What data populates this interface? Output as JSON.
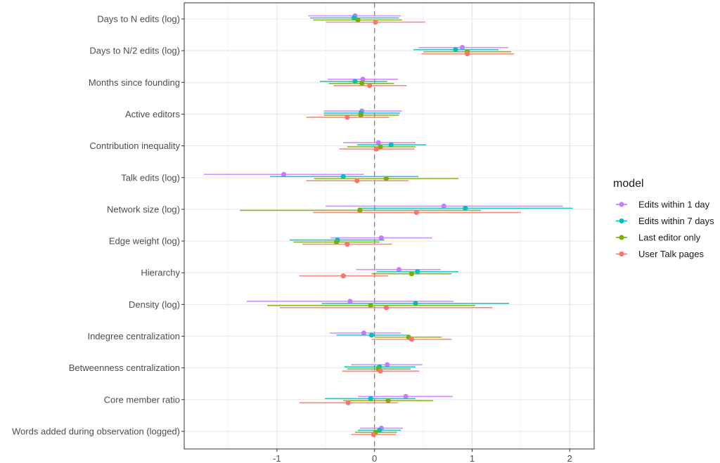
{
  "chart_data": {
    "type": "scatter",
    "subtype": "coefficient-plot-with-error-bars",
    "title": "",
    "xlabel": "",
    "ylabel": "",
    "xlim": [
      -1.95,
      2.25
    ],
    "x_ticks": [
      -1,
      0,
      1,
      2
    ],
    "x_tick_labels": [
      "-1",
      "0",
      "1",
      "2"
    ],
    "reference_line": 0,
    "grid": true,
    "legend": {
      "title": "model",
      "position": "right"
    },
    "categories": [
      "Days to N edits (log)",
      "Days to N/2 edits (log)",
      "Months since founding",
      "Active editors",
      "Contribution inequality",
      "Talk edits (log)",
      "Network size (log)",
      "Edge weight (log)",
      "Hierarchy",
      "Density (log)",
      "Indegree centralization",
      "Betweenness centralization",
      "Core member ratio",
      "Words added during observation (logged)"
    ],
    "series": [
      {
        "name": "Edits within 1 day",
        "color": "#c77cff",
        "estimate": [
          -0.2,
          0.9,
          -0.12,
          -0.13,
          0.04,
          -0.93,
          0.71,
          0.07,
          0.25,
          -0.25,
          -0.11,
          0.13,
          0.32,
          0.07
        ],
        "lower": [
          -0.68,
          0.45,
          -0.48,
          -0.52,
          -0.32,
          -1.75,
          -0.5,
          -0.45,
          -0.19,
          -1.31,
          -0.46,
          -0.24,
          -0.17,
          -0.15
        ],
        "upper": [
          0.27,
          1.37,
          0.24,
          0.28,
          0.42,
          -0.11,
          1.93,
          0.59,
          0.68,
          0.81,
          0.27,
          0.49,
          0.8,
          0.29
        ]
      },
      {
        "name": "Edits within 7 days",
        "color": "#00bfc4",
        "estimate": [
          -0.21,
          0.83,
          -0.2,
          -0.14,
          0.17,
          -0.32,
          0.93,
          -0.38,
          0.44,
          0.42,
          -0.03,
          0.05,
          -0.04,
          0.05
        ],
        "lower": [
          -0.66,
          0.4,
          -0.56,
          -0.52,
          -0.18,
          -1.07,
          -0.17,
          -0.87,
          0.02,
          -0.54,
          -0.39,
          -0.31,
          -0.51,
          -0.17
        ],
        "upper": [
          0.25,
          1.27,
          0.13,
          0.26,
          0.53,
          0.45,
          2.03,
          0.1,
          0.86,
          1.38,
          0.35,
          0.42,
          0.42,
          0.27
        ]
      },
      {
        "name": "Last editor only",
        "color": "#7cae00",
        "estimate": [
          -0.17,
          0.95,
          -0.13,
          -0.14,
          0.06,
          0.12,
          -0.15,
          -0.39,
          0.38,
          -0.04,
          0.35,
          0.04,
          0.14,
          0.01
        ],
        "lower": [
          -0.63,
          0.5,
          -0.47,
          -0.52,
          -0.28,
          -0.62,
          -1.38,
          -0.83,
          -0.03,
          -1.1,
          0.0,
          -0.28,
          -0.32,
          -0.2
        ],
        "upper": [
          0.28,
          1.4,
          0.2,
          0.25,
          0.42,
          0.86,
          1.09,
          0.05,
          0.79,
          1.03,
          0.69,
          0.37,
          0.6,
          0.23
        ]
      },
      {
        "name": "User Talk pages",
        "color": "#f8766d",
        "estimate": [
          0.01,
          0.95,
          -0.05,
          -0.28,
          0.02,
          -0.18,
          0.43,
          -0.28,
          -0.32,
          0.12,
          0.38,
          0.06,
          -0.27,
          -0.01
        ],
        "lower": [
          -0.5,
          0.48,
          -0.42,
          -0.7,
          -0.36,
          -0.7,
          -0.63,
          -0.74,
          -0.77,
          -0.97,
          -0.03,
          -0.33,
          -0.77,
          -0.24
        ],
        "upper": [
          0.52,
          1.43,
          0.33,
          0.15,
          0.41,
          0.35,
          1.5,
          0.18,
          0.14,
          1.21,
          0.79,
          0.46,
          0.24,
          0.22
        ]
      }
    ]
  }
}
